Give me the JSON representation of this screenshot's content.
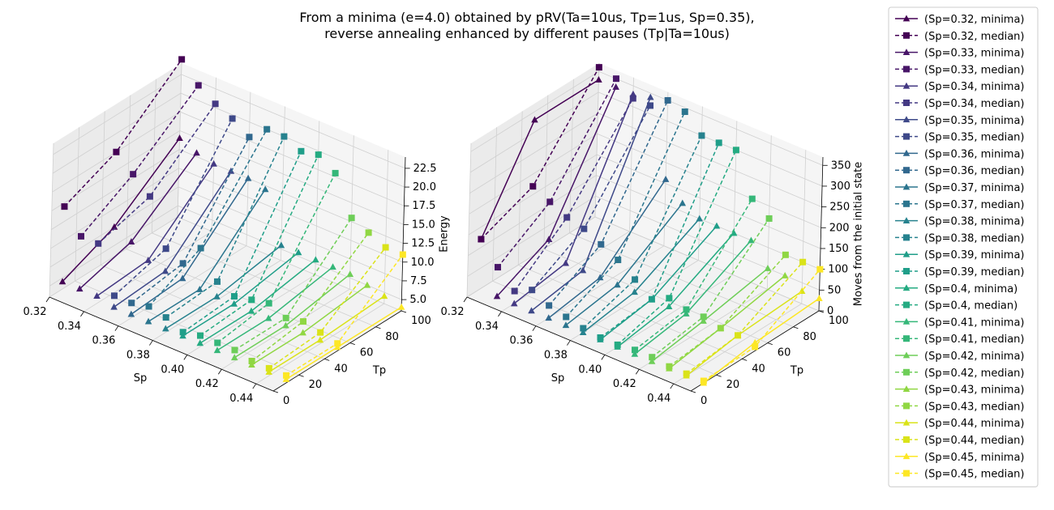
{
  "title_lines": [
    "From a minima (e=4.0) obtained by pRV(Ta=10us, Tp=1us, Sp=0.35),",
    "reverse annealing enhanced by different pauses (Tp|Ta=10us)"
  ],
  "colors": [
    "#440154",
    "#481668",
    "#482878",
    "#443983",
    "#3e4989",
    "#375a8c",
    "#31688e",
    "#2b758e",
    "#26828e",
    "#21918c",
    "#1f9e89",
    "#25ab82",
    "#35b779",
    "#4ec36b",
    "#6ece58",
    "#90d743",
    "#b5de2b",
    "#dae319",
    "#fde725"
  ],
  "chart_data": [
    {
      "type": "line3d",
      "id": "left",
      "xlabel": "Sp",
      "ylabel": "Tp",
      "zlabel": "Energy",
      "xlim": [
        0.32,
        0.45
      ],
      "ylim": [
        0,
        100
      ],
      "zlim": [
        3.5,
        24
      ],
      "xticks": [
        "0.32",
        "0.34",
        "0.36",
        "0.38",
        "0.40",
        "0.42",
        "0.44"
      ],
      "yticks": [
        "0",
        "20",
        "40",
        "60",
        "80",
        "100"
      ],
      "zticks": [
        "5.0",
        "7.5",
        "10.0",
        "12.5",
        "15.0",
        "17.5",
        "20.0",
        "22.5"
      ],
      "tp": [
        10,
        50,
        100
      ],
      "series": [
        {
          "sp": "0.32",
          "minima": [
            4.5,
            7.5,
            14.0
          ],
          "median": [
            14.5,
            17.5,
            24.5
          ]
        },
        {
          "sp": "0.33",
          "minima": [
            4.5,
            6.5,
            13.0
          ],
          "median": [
            11.5,
            15.5,
            22.0
          ]
        },
        {
          "sp": "0.34",
          "minima": [
            4.5,
            5.0,
            12.5
          ],
          "median": [
            11.5,
            13.5,
            20.5
          ]
        },
        {
          "sp": "0.35",
          "minima": [
            4.0,
            4.5,
            12.5
          ],
          "median": [
            5.5,
            7.5,
            19.5
          ]
        },
        {
          "sp": "0.36",
          "minima": [
            4.0,
            4.5,
            12.5
          ],
          "median": [
            5.5,
            6.5,
            18.0
          ]
        },
        {
          "sp": "0.37",
          "minima": [
            4.0,
            4.0,
            12.0
          ],
          "median": [
            6.0,
            9.5,
            20.0
          ]
        },
        {
          "sp": "0.38",
          "minima": [
            4.0,
            4.0,
            5.5
          ],
          "median": [
            5.5,
            6.0,
            20.0
          ]
        },
        {
          "sp": "0.39",
          "minima": [
            4.0,
            4.0,
            5.5
          ],
          "median": [
            4.5,
            5.0,
            19.0
          ]
        },
        {
          "sp": "0.40",
          "minima": [
            4.0,
            4.0,
            5.5
          ],
          "median": [
            5.0,
            5.5,
            19.5
          ]
        },
        {
          "sp": "0.41",
          "minima": [
            4.0,
            4.0,
            5.5
          ],
          "median": [
            5.0,
            6.0,
            18.0
          ]
        },
        {
          "sp": "0.42",
          "minima": [
            4.0,
            4.0,
            5.5
          ],
          "median": [
            5.0,
            5.0,
            13.0
          ]
        },
        {
          "sp": "0.43",
          "minima": [
            4.0,
            4.0,
            5.0
          ],
          "median": [
            4.5,
            5.5,
            12.0
          ]
        },
        {
          "sp": "0.44",
          "minima": [
            4.0,
            4.0,
            4.5
          ],
          "median": [
            4.5,
            5.0,
            11.0
          ]
        },
        {
          "sp": "0.45",
          "minima": [
            4.0,
            4.0,
            4.0
          ],
          "median": [
            4.5,
            4.5,
            11.0
          ]
        }
      ]
    },
    {
      "type": "line3d",
      "id": "right",
      "xlabel": "Sp",
      "ylabel": "Tp",
      "zlabel": "Moves from the initial state",
      "xlim": [
        0.32,
        0.45
      ],
      "ylim": [
        0,
        100
      ],
      "zlim": [
        0,
        370
      ],
      "xticks": [
        "0.32",
        "0.34",
        "0.36",
        "0.38",
        "0.40",
        "0.42",
        "0.44"
      ],
      "yticks": [
        "0",
        "20",
        "40",
        "60",
        "80",
        "100"
      ],
      "zticks": [
        "0",
        "50",
        "100",
        "150",
        "200",
        "250",
        "300",
        "350"
      ],
      "tp": [
        10,
        50,
        100
      ],
      "series": [
        {
          "sp": "0.32",
          "minima": [
            120,
            330,
            330
          ],
          "median": [
            120,
            170,
            360
          ]
        },
        {
          "sp": "0.33",
          "minima": [
            0,
            60,
            330
          ],
          "median": [
            70,
            150,
            350
          ]
        },
        {
          "sp": "0.34",
          "minima": [
            0,
            20,
            330
          ],
          "median": [
            30,
            130,
            320
          ]
        },
        {
          "sp": "0.35",
          "minima": [
            0,
            20,
            340
          ],
          "median": [
            50,
            120,
            320
          ]
        },
        {
          "sp": "0.36",
          "minima": [
            0,
            20,
            160
          ],
          "median": [
            30,
            100,
            350
          ]
        },
        {
          "sp": "0.37",
          "minima": [
            0,
            20,
            120
          ],
          "median": [
            20,
            80,
            340
          ]
        },
        {
          "sp": "0.38",
          "minima": [
            0,
            20,
            100
          ],
          "median": [
            10,
            50,
            300
          ]
        },
        {
          "sp": "0.39",
          "minima": [
            0,
            20,
            100
          ],
          "median": [
            5,
            20,
            300
          ]
        },
        {
          "sp": "0.40",
          "minima": [
            0,
            20,
            100
          ],
          "median": [
            5,
            40,
            300
          ]
        },
        {
          "sp": "0.41",
          "minima": [
            0,
            20,
            100
          ],
          "median": [
            10,
            30,
            200
          ]
        },
        {
          "sp": "0.42",
          "minima": [
            0,
            20,
            50
          ],
          "median": [
            10,
            30,
            170
          ]
        },
        {
          "sp": "0.43",
          "minima": [
            0,
            20,
            50
          ],
          "median": [
            5,
            20,
            100
          ]
        },
        {
          "sp": "0.44",
          "minima": [
            0,
            20,
            30
          ],
          "median": [
            5,
            20,
            100
          ]
        },
        {
          "sp": "0.45",
          "minima": [
            0,
            20,
            30
          ],
          "median": [
            5,
            10,
            100
          ]
        }
      ]
    }
  ],
  "legend": [
    {
      "label": "(Sp=0.32, minima)",
      "marker": "triangle",
      "dash": false
    },
    {
      "label": "(Sp=0.32, median)",
      "marker": "square",
      "dash": true
    },
    {
      "label": "(Sp=0.33, minima)",
      "marker": "triangle",
      "dash": false
    },
    {
      "label": "(Sp=0.33, median)",
      "marker": "square",
      "dash": true
    },
    {
      "label": "(Sp=0.34, minima)",
      "marker": "triangle",
      "dash": false
    },
    {
      "label": "(Sp=0.34, median)",
      "marker": "square",
      "dash": true
    },
    {
      "label": "(Sp=0.35, minima)",
      "marker": "triangle",
      "dash": false
    },
    {
      "label": "(Sp=0.35, median)",
      "marker": "square",
      "dash": true
    },
    {
      "label": "(Sp=0.36, minima)",
      "marker": "triangle",
      "dash": false
    },
    {
      "label": "(Sp=0.36, median)",
      "marker": "square",
      "dash": true
    },
    {
      "label": "(Sp=0.37, minima)",
      "marker": "triangle",
      "dash": false
    },
    {
      "label": "(Sp=0.37, median)",
      "marker": "square",
      "dash": true
    },
    {
      "label": "(Sp=0.38, minima)",
      "marker": "triangle",
      "dash": false
    },
    {
      "label": "(Sp=0.38, median)",
      "marker": "square",
      "dash": true
    },
    {
      "label": "(Sp=0.39, minima)",
      "marker": "triangle",
      "dash": false
    },
    {
      "label": "(Sp=0.39, median)",
      "marker": "square",
      "dash": true
    },
    {
      "label": "(Sp=0.4, minima)",
      "marker": "triangle",
      "dash": false
    },
    {
      "label": "(Sp=0.4, median)",
      "marker": "square",
      "dash": true
    },
    {
      "label": "(Sp=0.41, minima)",
      "marker": "triangle",
      "dash": false
    },
    {
      "label": "(Sp=0.41, median)",
      "marker": "square",
      "dash": true
    },
    {
      "label": "(Sp=0.42, minima)",
      "marker": "triangle",
      "dash": false
    },
    {
      "label": "(Sp=0.42, median)",
      "marker": "square",
      "dash": true
    },
    {
      "label": "(Sp=0.43, minima)",
      "marker": "triangle",
      "dash": false
    },
    {
      "label": "(Sp=0.43, median)",
      "marker": "square",
      "dash": true
    },
    {
      "label": "(Sp=0.44, minima)",
      "marker": "triangle",
      "dash": false
    },
    {
      "label": "(Sp=0.44, median)",
      "marker": "square",
      "dash": true
    },
    {
      "label": "(Sp=0.45, minima)",
      "marker": "triangle",
      "dash": false
    },
    {
      "label": "(Sp=0.45, median)",
      "marker": "square",
      "dash": true
    }
  ]
}
